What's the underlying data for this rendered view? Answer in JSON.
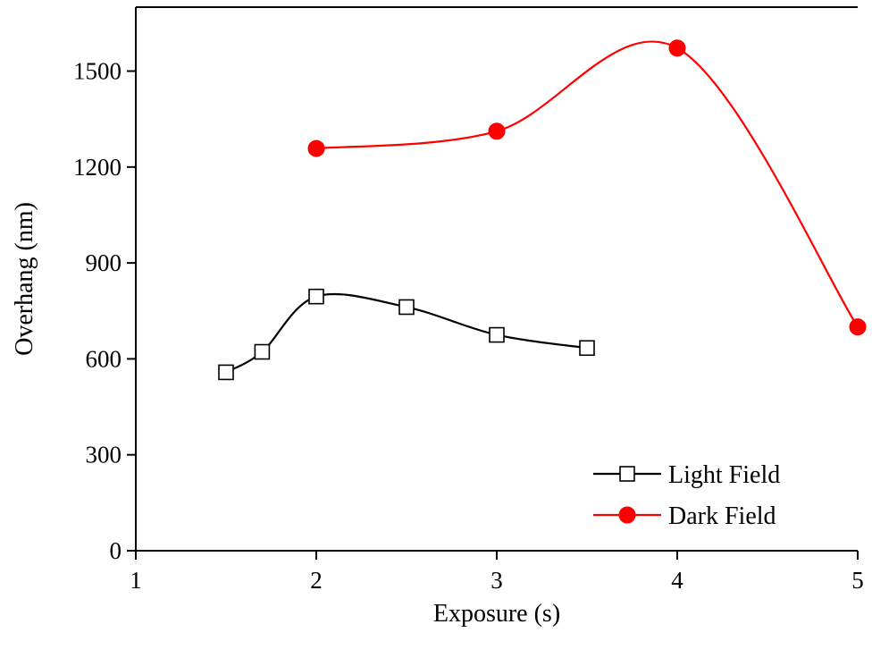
{
  "chart_data": {
    "type": "line",
    "xlabel": "Exposure (s)",
    "ylabel": "Overhang (nm)",
    "xlim": [
      1,
      5
    ],
    "ylim": [
      0,
      1700
    ],
    "xticks": [
      1,
      2,
      3,
      4,
      5
    ],
    "yticks": [
      0,
      300,
      600,
      900,
      1200,
      1500
    ],
    "legend_position": "bottom-right",
    "grid": false,
    "series": [
      {
        "name": "Light Field",
        "color": "#000000",
        "marker": "open-square",
        "x": [
          1.5,
          1.7,
          2.0,
          2.5,
          3.0,
          3.5
        ],
        "y": [
          558,
          622,
          795,
          762,
          675,
          634
        ]
      },
      {
        "name": "Dark Field",
        "color": "#ff0000",
        "marker": "filled-circle",
        "x": [
          2.0,
          3.0,
          4.0,
          5.0
        ],
        "y": [
          1258,
          1312,
          1572,
          700
        ]
      }
    ]
  }
}
